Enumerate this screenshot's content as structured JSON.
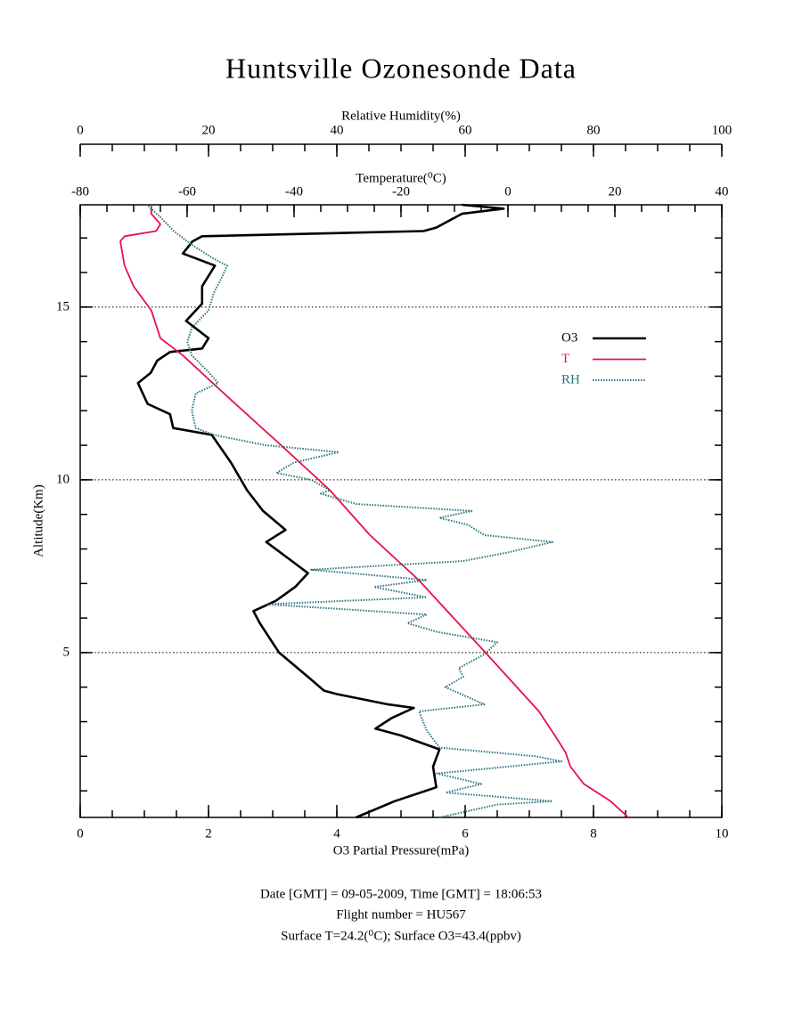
{
  "chart_data": {
    "type": "line",
    "title": "Huntsville Ozonesonde Data",
    "ylabel": "Altitude(Km)",
    "ylim": [
      0.23,
      17.96
    ],
    "yticks": [
      5,
      10,
      15
    ],
    "y_minor_step": 1,
    "grid": true,
    "axes": {
      "o3": {
        "label": "O3 Partial Pressure(mPa)",
        "lim": [
          0,
          10
        ],
        "ticks": [
          0,
          2,
          4,
          6,
          8,
          10
        ],
        "minor_step": 0.5
      },
      "temperature": {
        "label": "Temperature(⁰C)",
        "lim": [
          -80,
          40
        ],
        "ticks": [
          -80,
          -60,
          -40,
          -20,
          0,
          20,
          40
        ],
        "minor_step": 5
      },
      "rh": {
        "label": "Relative Humidity(%)",
        "lim": [
          0,
          100
        ],
        "ticks": [
          0,
          20,
          40,
          60,
          80,
          100
        ],
        "minor_step": 5
      }
    },
    "series": [
      {
        "name": "O3",
        "color": "#000000",
        "axis": "o3",
        "altitude": [
          0.23,
          0.7,
          1.1,
          1.7,
          2.2,
          2.6,
          2.8,
          3.1,
          3.4,
          3.5,
          3.8,
          3.9,
          4.3,
          5.0,
          5.85,
          6.2,
          6.5,
          6.9,
          7.3,
          7.65,
          8.2,
          8.55,
          9.1,
          9.7,
          10.5,
          11.3,
          11.5,
          11.9,
          12.2,
          12.8,
          13.1,
          13.45,
          13.7,
          13.8,
          14.1,
          14.6,
          15.1,
          15.6,
          16.2,
          16.55,
          16.9,
          17.05,
          17.2,
          17.3,
          17.7,
          17.85,
          17.96
        ],
        "values": [
          4.3,
          4.9,
          5.55,
          5.5,
          5.6,
          5.0,
          4.6,
          4.85,
          5.2,
          4.8,
          4.0,
          3.8,
          3.55,
          3.1,
          2.8,
          2.7,
          3.05,
          3.35,
          3.55,
          3.3,
          2.9,
          3.2,
          2.85,
          2.6,
          2.35,
          2.05,
          1.45,
          1.4,
          1.05,
          0.9,
          1.1,
          1.2,
          1.4,
          1.9,
          2.0,
          1.65,
          1.9,
          1.9,
          2.1,
          1.6,
          1.75,
          1.9,
          5.35,
          5.55,
          5.95,
          6.6,
          5.95
        ]
      },
      {
        "name": "T",
        "color": "#e8104a",
        "axis": "temperature",
        "altitude": [
          0.23,
          0.7,
          1.2,
          1.7,
          2.1,
          2.5,
          3.3,
          5.0,
          7.1,
          8.4,
          9.7,
          10.9,
          12.3,
          13.6,
          14.1,
          14.9,
          15.6,
          16.2,
          16.9,
          17.05,
          17.2,
          17.4,
          17.7,
          17.96
        ],
        "values": [
          22.5,
          19.2,
          14.2,
          11.7,
          10.8,
          9.2,
          5.8,
          -4.2,
          -16.7,
          -25.8,
          -33.3,
          -41.7,
          -51.7,
          -60.8,
          -65,
          -66.7,
          -70,
          -71.7,
          -72.5,
          -71.7,
          -65.8,
          -65,
          -66.7,
          -66.7
        ]
      },
      {
        "name": "RH",
        "color": "#2a7480",
        "axis": "rh",
        "altitude": [
          0.23,
          0.6,
          0.7,
          0.95,
          1.2,
          1.5,
          1.85,
          2.0,
          2.25,
          2.75,
          3.3,
          3.5,
          4.0,
          4.3,
          4.55,
          4.95,
          5.3,
          5.6,
          5.85,
          6.1,
          6.4,
          6.6,
          6.9,
          7.1,
          7.4,
          7.65,
          7.9,
          8.2,
          8.4,
          8.7,
          8.9,
          9.1,
          9.3,
          9.6,
          9.7,
          10.0,
          10.2,
          10.5,
          10.8,
          11.0,
          11.3,
          11.5,
          12.0,
          12.5,
          12.8,
          13.1,
          13.6,
          14.0,
          14.4,
          14.9,
          15.4,
          15.9,
          16.2,
          16.4,
          16.8,
          17.2,
          17.6,
          17.96
        ],
        "values": [
          56,
          65,
          73.6,
          57,
          62.5,
          55.6,
          75,
          71,
          56,
          54,
          52.8,
          63,
          56.9,
          59.7,
          59,
          63,
          65,
          55.6,
          51,
          54,
          29,
          54,
          45.8,
          54,
          36,
          59.7,
          66.7,
          73.6,
          63,
          60.4,
          56,
          61,
          43,
          37.5,
          38.9,
          36,
          30.6,
          33.3,
          40.3,
          29,
          20.8,
          18,
          17.4,
          18,
          21.5,
          20.1,
          17.4,
          16.7,
          17.4,
          20,
          20.8,
          22.2,
          22.9,
          20.8,
          17.4,
          14.6,
          12.5,
          10.4
        ]
      }
    ],
    "footer": [
      "Date [GMT] = 09-05-2009,  Time [GMT] = 18:06:53",
      "Flight number = HU567",
      "Surface T=24.2(⁰C); Surface O3=43.4(ppbv)"
    ]
  }
}
